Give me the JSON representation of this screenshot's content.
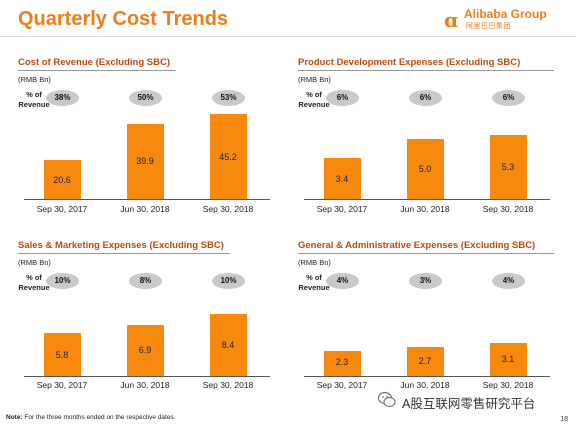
{
  "title": "Quarterly Cost Trends",
  "logo": {
    "text": "Alibaba Group",
    "sub": "阿里巴巴集团"
  },
  "panels": [
    {
      "title": "Cost of Revenue (Excluding SBC)",
      "unit": "(RMB Bn)",
      "pct_label": "% of Revenue",
      "chart_data": {
        "type": "bar",
        "categories": [
          "Sep 30, 2017",
          "Jun 30, 2018",
          "Sep 30, 2018"
        ],
        "values": [
          20.6,
          39.9,
          45.2
        ],
        "percent_of_revenue": [
          "38%",
          "50%",
          "53%"
        ],
        "title": "Cost of Revenue (Excluding SBC)",
        "ylabel": "(RMB Bn)"
      }
    },
    {
      "title": "Product Development Expenses (Excluding SBC)",
      "unit": "(RMB Bn)",
      "pct_label": "% of Revenue",
      "chart_data": {
        "type": "bar",
        "categories": [
          "Sep 30, 2017",
          "Jun 30, 2018",
          "Sep 30, 2018"
        ],
        "values": [
          3.4,
          5.0,
          5.3
        ],
        "percent_of_revenue": [
          "6%",
          "6%",
          "6%"
        ],
        "title": "Product Development Expenses (Excluding SBC)",
        "ylabel": "(RMB Bn)"
      }
    },
    {
      "title": "Sales & Marketing Expenses (Excluding SBC)",
      "unit": "(RMB Bn)",
      "pct_label": "% of Revenue",
      "chart_data": {
        "type": "bar",
        "categories": [
          "Sep 30, 2017",
          "Jun 30, 2018",
          "Sep 30, 2018"
        ],
        "values": [
          5.8,
          6.9,
          8.4
        ],
        "percent_of_revenue": [
          "10%",
          "8%",
          "10%"
        ],
        "title": "Sales & Marketing Expenses (Excluding SBC)",
        "ylabel": "(RMB Bn)"
      }
    },
    {
      "title": "General & Administrative Expenses (Excluding SBC)",
      "unit": "(RMB Bn)",
      "pct_label": "% of Revenue",
      "chart_data": {
        "type": "bar",
        "categories": [
          "Sep 30, 2017",
          "Jun 30, 2018",
          "Sep 30, 2018"
        ],
        "values": [
          2.3,
          2.7,
          3.1
        ],
        "percent_of_revenue": [
          "4%",
          "3%",
          "4%"
        ],
        "title": "General & Administrative Expenses (Excluding SBC)",
        "ylabel": "(RMB Bn)"
      }
    }
  ],
  "note_label": "Note:",
  "note": "For the three months ended on the respective dates.",
  "page_number": "18",
  "watermark": "A股互联网零售研究平台",
  "colors": {
    "title": "#f07c1a",
    "panel_title": "#c04a0c",
    "bar": "#f7890f",
    "pill": "#c9c9c9"
  }
}
